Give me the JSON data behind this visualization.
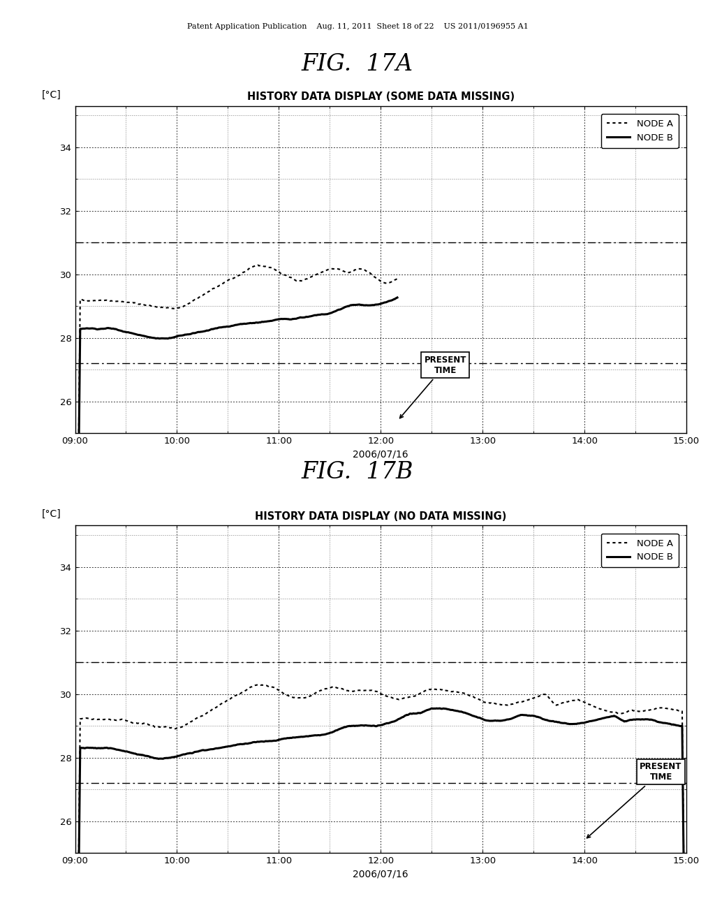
{
  "fig_title_A": "FIG.  17A",
  "fig_title_B": "FIG.  17B",
  "chart_title_A": "HISTORY DATA DISPLAY (SOME DATA MISSING)",
  "chart_title_B": "HISTORY DATA DISPLAY (NO DATA MISSING)",
  "ylabel": "[°C]",
  "xlabel": "2006/07/16",
  "xtick_labels": [
    "09:00",
    "10:00",
    "11:00",
    "12:00",
    "13:00",
    "14:00",
    "15:00"
  ],
  "xtick_values": [
    0,
    60,
    120,
    180,
    240,
    300,
    360
  ],
  "ytick_labels": [
    "26",
    "28",
    "30",
    "32",
    "34"
  ],
  "ytick_values": [
    26,
    28,
    30,
    32,
    34
  ],
  "ylim": [
    25.2,
    35.3
  ],
  "xlim": [
    0,
    360
  ],
  "present_time_A": 190,
  "present_time_B": 300,
  "header_text": "Patent Application Publication    Aug. 11, 2011  Sheet 18 of 22    US 2011/0196955 A1",
  "background_color": "#ffffff",
  "node_a_label": "NODE A",
  "node_b_label": "NODE B",
  "dashline_y1": 31.0,
  "dashline_y2": 27.2
}
